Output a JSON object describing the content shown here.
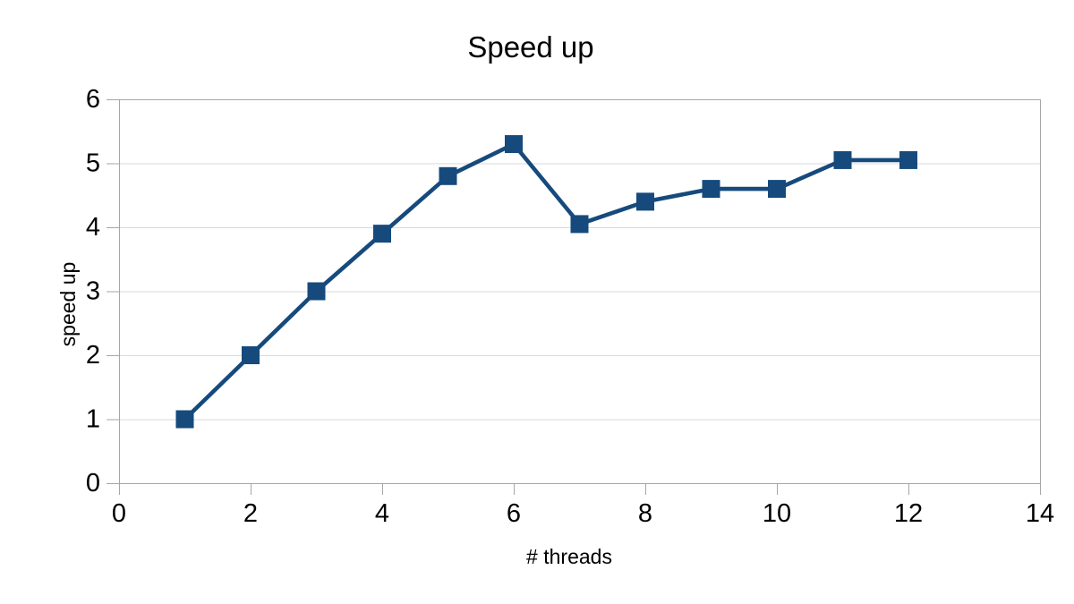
{
  "chart_data": {
    "type": "line",
    "title": "Speed up",
    "xlabel": "# threads",
    "ylabel": "speed up",
    "x": [
      1,
      2,
      3,
      4,
      5,
      6,
      7,
      8,
      9,
      10,
      11,
      12
    ],
    "series": [
      {
        "name": "speed up",
        "values": [
          1.0,
          2.0,
          3.0,
          3.9,
          4.8,
          5.3,
          4.05,
          4.4,
          4.6,
          4.6,
          5.05,
          5.05
        ]
      }
    ],
    "xlim": [
      0,
      14
    ],
    "ylim": [
      0,
      6
    ],
    "xticks": [
      0,
      2,
      4,
      6,
      8,
      10,
      12,
      14
    ],
    "yticks": [
      0,
      1,
      2,
      3,
      4,
      5,
      6
    ],
    "grid": "horizontal",
    "legend": "none",
    "marker": "square",
    "colors": {
      "series": "#164a7d",
      "gridline": "#d9d9d9",
      "axis": "#a6a6a6",
      "text": "#000000",
      "background": "#ffffff"
    }
  }
}
